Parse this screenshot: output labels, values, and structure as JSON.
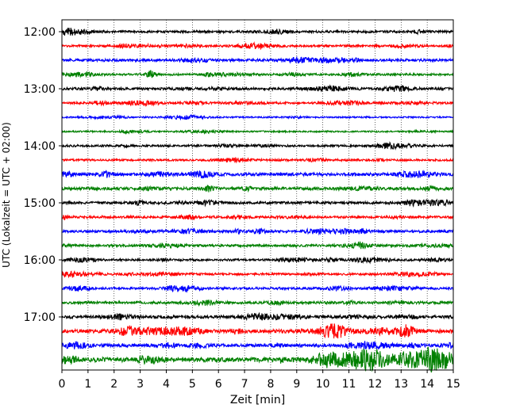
{
  "chart_data": {
    "type": "line",
    "subtype": "helicorder",
    "title": "",
    "xlabel": "Zeit  [min]",
    "ylabel": "UTC (Lokalzeit = UTC + 02:00)",
    "xlim": [
      0,
      15
    ],
    "xticks": [
      0,
      1,
      2,
      3,
      4,
      5,
      6,
      7,
      8,
      9,
      10,
      11,
      12,
      13,
      14,
      15
    ],
    "yticks": [
      "12:00",
      "13:00",
      "14:00",
      "15:00",
      "16:00",
      "17:00"
    ],
    "grid": "vertical-dotted",
    "row_interval_minutes": 15,
    "colors": [
      "#000000",
      "#ff0000",
      "#0000ff",
      "#008000"
    ],
    "traces": [
      {
        "start": "12:00",
        "color": "#000000",
        "amp": 0.9
      },
      {
        "start": "12:15",
        "color": "#ff0000",
        "amp": 0.8
      },
      {
        "start": "12:30",
        "color": "#0000ff",
        "amp": 1.0
      },
      {
        "start": "12:45",
        "color": "#008000",
        "amp": 0.8
      },
      {
        "start": "13:00",
        "color": "#000000",
        "amp": 1.0
      },
      {
        "start": "13:15",
        "color": "#ff0000",
        "amp": 0.8
      },
      {
        "start": "13:30",
        "color": "#0000ff",
        "amp": 0.6
      },
      {
        "start": "13:45",
        "color": "#008000",
        "amp": 0.6
      },
      {
        "start": "14:00",
        "color": "#000000",
        "amp": 0.8
      },
      {
        "start": "14:15",
        "color": "#ff0000",
        "amp": 0.8
      },
      {
        "start": "14:30",
        "color": "#0000ff",
        "amp": 1.2
      },
      {
        "start": "14:45",
        "color": "#008000",
        "amp": 1.1
      },
      {
        "start": "15:00",
        "color": "#000000",
        "amp": 1.0
      },
      {
        "start": "15:15",
        "color": "#ff0000",
        "amp": 0.9
      },
      {
        "start": "15:30",
        "color": "#0000ff",
        "amp": 1.0
      },
      {
        "start": "15:45",
        "color": "#008000",
        "amp": 0.9
      },
      {
        "start": "16:00",
        "color": "#000000",
        "amp": 0.8
      },
      {
        "start": "16:15",
        "color": "#ff0000",
        "amp": 0.8
      },
      {
        "start": "16:30",
        "color": "#0000ff",
        "amp": 0.9
      },
      {
        "start": "16:45",
        "color": "#008000",
        "amp": 1.0
      },
      {
        "start": "17:00",
        "color": "#000000",
        "amp": 1.1
      },
      {
        "start": "17:15",
        "color": "#ff0000",
        "amp": 1.4
      },
      {
        "start": "17:30",
        "color": "#0000ff",
        "amp": 1.2
      },
      {
        "start": "17:45",
        "color": "#008000",
        "amp": 1.8
      }
    ]
  }
}
